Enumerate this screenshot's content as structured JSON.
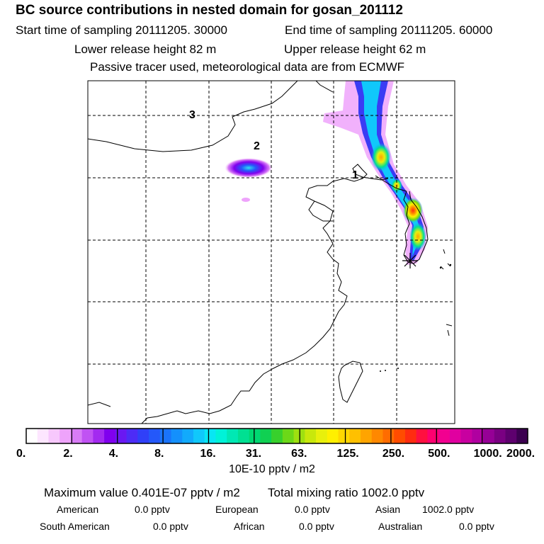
{
  "title": "BC  source contributions in nested domain for gosan_201112",
  "header": {
    "start_time": "Start time of sampling 20111205. 30000",
    "end_time": "End time of sampling 20111205. 60000",
    "lower_release": "Lower release height   82 m",
    "upper_release": "Upper release height   62 m",
    "tracer_note": "Passive tracer used, meteorological data are from ECMWF"
  },
  "map": {
    "region_labels": [
      "1",
      "2",
      "3"
    ],
    "receptor_marker": "receptor-star"
  },
  "colorbar": {
    "tick_labels": [
      "0.",
      "2.",
      "4.",
      "8.",
      "16.",
      "31.",
      "63.",
      "125.",
      "250.",
      "500.",
      "1000.",
      "2000."
    ],
    "unit_label": "10E-10 pptv / m2",
    "colors": [
      "#ffffff",
      "#fde6ff",
      "#f7c8fd",
      "#eea3fb",
      "#d87cf6",
      "#c052f3",
      "#a32af0",
      "#8000ee",
      "#6a18f2",
      "#4d2cf6",
      "#3040f8",
      "#2458fa",
      "#1a74fb",
      "#1490fc",
      "#12aafc",
      "#10c8fb",
      "#08e6f4",
      "#00f2d8",
      "#00e8b4",
      "#00e092",
      "#00d872",
      "#10d052",
      "#38d02c",
      "#6cd818",
      "#9ee010",
      "#c8e80c",
      "#e8f00c",
      "#fff000",
      "#ffd800",
      "#ffc000",
      "#ffa400",
      "#ff8800",
      "#ff6c00",
      "#ff4c00",
      "#ff2c10",
      "#ff1040",
      "#ff0070",
      "#f20090",
      "#e000a0",
      "#c800a0",
      "#b000a0",
      "#960096",
      "#7a0082",
      "#5e006e",
      "#3c0050"
    ]
  },
  "stats": {
    "max_label": "Maximum value  0.401E-07 pptv / m2",
    "total_label": "Total mixing ratio     1002.0 pptv",
    "sources": [
      {
        "name": "American",
        "value": "0.0 pptv"
      },
      {
        "name": "European",
        "value": "0.0 pptv"
      },
      {
        "name": "Asian",
        "value": "1002.0 pptv"
      },
      {
        "name": "South American",
        "value": "0.0 pptv"
      },
      {
        "name": "African",
        "value": "0.0 pptv"
      },
      {
        "name": "Australian",
        "value": "0.0 pptv"
      }
    ]
  }
}
